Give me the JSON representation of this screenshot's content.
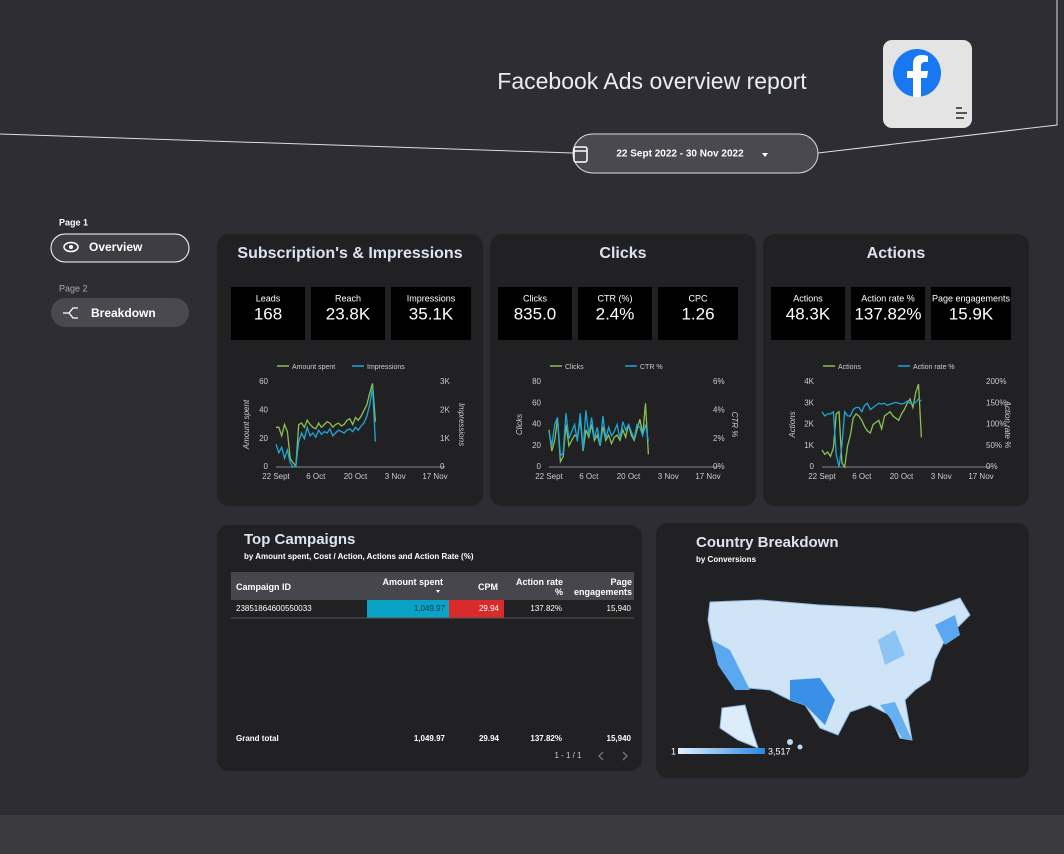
{
  "header": {
    "title": "Facebook Ads overview report",
    "date_range": "22 Sept 2022 - 30 Nov 2022"
  },
  "nav": {
    "pages": [
      {
        "label": "Page 1",
        "item": "Overview"
      },
      {
        "label": "Page 2",
        "item": "Breakdown"
      }
    ]
  },
  "panels": [
    {
      "title": "Subscription's & Impressions",
      "kpis": [
        {
          "label": "Leads",
          "value": "168"
        },
        {
          "label": "Reach",
          "value": "23.8K"
        },
        {
          "label": "Impressions",
          "value": "35.1K"
        }
      ]
    },
    {
      "title": "Clicks",
      "kpis": [
        {
          "label": "Clicks",
          "value": "835.0"
        },
        {
          "label": "CTR (%)",
          "value": "2.4%"
        },
        {
          "label": "CPC",
          "value": "1.26"
        }
      ]
    },
    {
      "title": "Actions",
      "kpis": [
        {
          "label": "Actions",
          "value": "48.3K"
        },
        {
          "label": "Action rate %",
          "value": "137.82%"
        },
        {
          "label": "Page engagements",
          "value": "15.9K"
        }
      ]
    }
  ],
  "chart_data": [
    {
      "type": "line",
      "categories": [
        "22 Sept",
        null,
        null,
        null,
        null,
        null,
        null,
        null,
        null,
        null,
        null,
        null,
        null,
        null,
        "6 Oct",
        null,
        null,
        null,
        null,
        null,
        null,
        null,
        null,
        null,
        null,
        null,
        null,
        null,
        "20 Oct",
        null,
        null,
        null,
        null,
        null,
        null,
        null,
        null,
        null,
        null,
        null,
        null,
        null,
        "3 Nov",
        null,
        null,
        null,
        null,
        null,
        null,
        null,
        null,
        null,
        null,
        null,
        null,
        null,
        "17 Nov"
      ],
      "series": [
        {
          "name": "Amount spent",
          "color": "#8cc152",
          "values": [
            28,
            28,
            22,
            30,
            25,
            6,
            3,
            1,
            30,
            31,
            28,
            33,
            30,
            28,
            27,
            31,
            28,
            30,
            32,
            31,
            28,
            30,
            31,
            29,
            30,
            33,
            34,
            30,
            35,
            33,
            36,
            40,
            44,
            52,
            59,
            32,
            null,
            null,
            null,
            null,
            null,
            null,
            null,
            null,
            null,
            null,
            null,
            null,
            null,
            null,
            null,
            null,
            null,
            null,
            null,
            null,
            null
          ]
        },
        {
          "name": "Impressions",
          "color": "#1ea7d6",
          "axis": "y2",
          "values": [
            800,
            500,
            700,
            300,
            600,
            150,
            0,
            50,
            900,
            1200,
            1000,
            1400,
            1100,
            1200,
            1050,
            1300,
            1150,
            1250,
            1200,
            1350,
            1100,
            1200,
            1300,
            1250,
            1200,
            1300,
            1350,
            1250,
            1400,
            1300,
            1450,
            1550,
            1800,
            2200,
            2800,
            900,
            null,
            null,
            null,
            null,
            null,
            null,
            null,
            null,
            null,
            null,
            null,
            null,
            null,
            null,
            null,
            null,
            null,
            null,
            null,
            null,
            null
          ]
        }
      ],
      "ylabel": "Amount spent",
      "y2label": "Impressions",
      "ylim": [
        0,
        60
      ],
      "yticks": [
        0,
        20,
        40,
        60
      ],
      "y2lim": [
        0,
        3000
      ],
      "y2ticks": [
        0,
        {
          "value": 1000,
          "label": "1K"
        },
        {
          "value": 2000,
          "label": "2K"
        },
        {
          "value": 3000,
          "label": "3K"
        }
      ]
    },
    {
      "type": "line",
      "categories": [
        "22 Sept",
        null,
        null,
        null,
        null,
        null,
        null,
        null,
        null,
        null,
        null,
        null,
        null,
        null,
        "6 Oct",
        null,
        null,
        null,
        null,
        null,
        null,
        null,
        null,
        null,
        null,
        null,
        null,
        null,
        "20 Oct",
        null,
        null,
        null,
        null,
        null,
        null,
        null,
        null,
        null,
        null,
        null,
        null,
        null,
        "3 Nov",
        null,
        null,
        null,
        null,
        null,
        null,
        null,
        null,
        null,
        null,
        null,
        null,
        null,
        "17 Nov"
      ],
      "series": [
        {
          "name": "Clicks",
          "color": "#8cc152",
          "values": [
            35,
            15,
            25,
            45,
            5,
            10,
            40,
            20,
            25,
            30,
            28,
            45,
            15,
            35,
            28,
            40,
            25,
            30,
            20,
            38,
            25,
            30,
            22,
            28,
            30,
            25,
            35,
            28,
            40,
            30,
            25,
            35,
            45,
            30,
            60,
            12,
            null,
            null,
            null,
            null,
            null,
            null,
            null,
            null,
            null,
            null,
            null,
            null,
            null,
            null,
            null,
            null,
            null,
            null,
            null,
            null,
            null
          ]
        },
        {
          "name": "CTR %",
          "color": "#1ea7d6",
          "axis": "y2",
          "values": [
            2.5,
            1.5,
            3.0,
            3.5,
            0.8,
            1.0,
            3.8,
            2.0,
            2.5,
            3.0,
            1.8,
            3.8,
            1.2,
            4.0,
            2.2,
            3.5,
            2.0,
            2.8,
            1.5,
            3.6,
            2.0,
            2.8,
            2.2,
            2.5,
            3.0,
            2.0,
            3.2,
            2.6,
            3.0,
            2.5,
            2.0,
            3.0,
            2.8,
            2.2,
            3.0,
            1.8,
            null,
            null,
            null,
            null,
            null,
            null,
            null,
            null,
            null,
            null,
            null,
            null,
            null,
            null,
            null,
            null,
            null,
            null,
            null,
            null,
            null
          ]
        }
      ],
      "ylabel": "Clicks",
      "y2label": "CTR %",
      "ylim": [
        0,
        80
      ],
      "yticks": [
        0,
        20,
        40,
        60,
        80
      ],
      "y2lim": [
        0,
        6
      ],
      "y2ticks": [
        {
          "value": 0,
          "label": "0%"
        },
        {
          "value": 2,
          "label": "2%"
        },
        {
          "value": 4,
          "label": "4%"
        },
        {
          "value": 6,
          "label": "6%"
        }
      ]
    },
    {
      "type": "line",
      "categories": [
        "22 Sept",
        null,
        null,
        null,
        null,
        null,
        null,
        null,
        null,
        null,
        null,
        null,
        null,
        null,
        "6 Oct",
        null,
        null,
        null,
        null,
        null,
        null,
        null,
        null,
        null,
        null,
        null,
        null,
        null,
        "20 Oct",
        null,
        null,
        null,
        null,
        null,
        null,
        null,
        null,
        null,
        null,
        null,
        null,
        null,
        "3 Nov",
        null,
        null,
        null,
        null,
        null,
        null,
        null,
        null,
        null,
        null,
        null,
        null,
        null,
        "17 Nov"
      ],
      "series": [
        {
          "name": "Actions",
          "color": "#8cc152",
          "values": [
            800,
            600,
            700,
            500,
            900,
            2500,
            2600,
            200,
            0,
            1000,
            1500,
            2300,
            2500,
            2400,
            2200,
            1900,
            1700,
            1600,
            2000,
            2100,
            2200,
            1800,
            2400,
            2500,
            2600,
            2400,
            2300,
            2200,
            2500,
            2700,
            3000,
            3200,
            2800,
            3500,
            3900,
            1400,
            null,
            null,
            null,
            null,
            null,
            null,
            null,
            null,
            null,
            null,
            null,
            null,
            null,
            null,
            null,
            null,
            null,
            null,
            null,
            null,
            null
          ]
        },
        {
          "name": "Action rate %",
          "color": "#1ea7d6",
          "axis": "y2",
          "values": [
            130,
            120,
            125,
            125,
            130,
            30,
            0,
            50,
            130,
            120,
            120,
            135,
            140,
            140,
            130,
            145,
            150,
            135,
            140,
            145,
            150,
            148,
            150,
            145,
            148,
            150,
            152,
            150,
            148,
            150,
            155,
            150,
            148,
            152,
            160,
            155,
            null,
            null,
            null,
            null,
            null,
            null,
            null,
            null,
            null,
            null,
            null,
            null,
            null,
            null,
            null,
            null,
            null,
            null,
            null,
            null,
            null
          ]
        }
      ],
      "ylabel": "Actions",
      "y2label": "Action rate %",
      "ylim": [
        0,
        4000
      ],
      "yticks": [
        0,
        {
          "value": 1000,
          "label": "1K"
        },
        {
          "value": 2000,
          "label": "2K"
        },
        {
          "value": 3000,
          "label": "3K"
        },
        {
          "value": 4000,
          "label": "4K"
        }
      ],
      "y2lim": [
        0,
        200
      ],
      "y2ticks": [
        {
          "value": 0,
          "label": "0%"
        },
        {
          "value": 50,
          "label": "50%"
        },
        {
          "value": 100,
          "label": "100%"
        },
        {
          "value": 150,
          "label": "150%"
        },
        {
          "value": 200,
          "label": "200%"
        }
      ]
    }
  ],
  "table": {
    "title": "Top Campaigns",
    "subtitle": "by  Amount spent, Cost / Action, Actions and Action Rate (%)",
    "columns": [
      "Campaign ID",
      "Amount spent",
      "CPM",
      "Action rate %",
      "Page engagements"
    ],
    "rows": [
      [
        "23851864600550033",
        "1,049.97",
        "29.94",
        "137.82%",
        "15,940"
      ]
    ],
    "total": [
      "Grand total",
      "1,049.97",
      "29.94",
      "137.82%",
      "15,940"
    ],
    "pagination": "1 - 1 / 1"
  },
  "map": {
    "title": "Country Breakdown",
    "subtitle": "by Conversions",
    "legend_min": "1",
    "legend_max": "3,517"
  }
}
